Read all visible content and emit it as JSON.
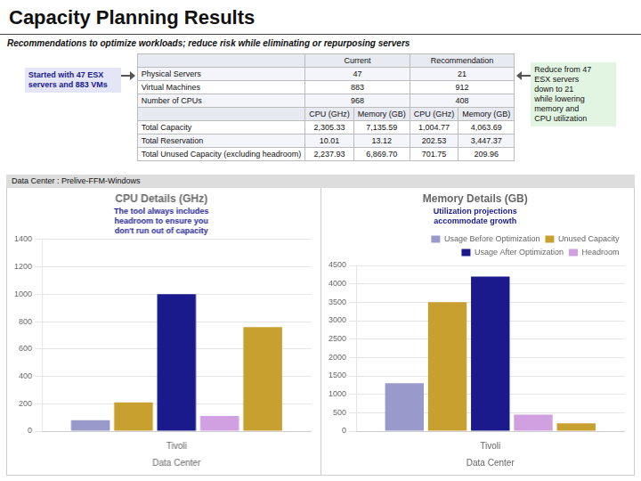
{
  "title": "Capacity Planning Results",
  "subtitle": "Recommendations to optimize workloads; reduce risk while eliminating or repurposing servers",
  "table": {
    "columns": [
      "Current",
      "Recommendation"
    ],
    "rows": [
      {
        "label": "Physical Servers",
        "values": [
          "47",
          "21"
        ]
      },
      {
        "label": "Virtual Machines",
        "values": [
          "883",
          "912"
        ]
      },
      {
        "label": "Number of CPUs",
        "values": [
          "968",
          "408"
        ]
      }
    ],
    "sub_headers": [
      "CPU (GHz)",
      "Memory (GB)",
      "CPU (GHz)",
      "Memory (GB)"
    ],
    "data_rows": [
      {
        "label": "Total Capacity",
        "values": [
          "2,305.33",
          "7,135.59",
          "1,004.77",
          "4,063.69"
        ]
      },
      {
        "label": "Total Reservation",
        "values": [
          "10.01",
          "13.12",
          "202.53",
          "3,447.37"
        ]
      },
      {
        "label": "Total Unused Capacity (excluding headroom)",
        "values": [
          "2,237.93",
          "6,869.70",
          "701.75",
          "209.96"
        ]
      }
    ]
  },
  "annotations": [
    "Started with 47 ESX\nservers and 883 VMs",
    "Reduce from 47\nESX servers\ndown to 21\nwhile lowering\nmemory and\nCPU utilization",
    "Data Center : Prelive-FFM-Windows"
  ],
  "chart_data": [
    {
      "type": "bar",
      "title": "CPU Details (GHz)",
      "xlabel": "Data Center",
      "categories": [
        "Tivoli"
      ],
      "series": [
        {
          "color": "#9999cc",
          "values": [
            80
          ]
        },
        {
          "color": "#c8a030",
          "values": [
            210
          ]
        },
        {
          "color": "#1a1a8c",
          "values": [
            1000
          ]
        },
        {
          "color": "#d0a0e0",
          "values": [
            110
          ]
        },
        {
          "color": "#c8a030",
          "values": [
            760
          ]
        }
      ],
      "ylim": [
        0,
        1400
      ],
      "yticks": [
        0,
        200,
        400,
        600,
        800,
        1000,
        1200,
        1400
      ],
      "grid": true,
      "annotations": [
        "The tool always includes\nheadroom to ensure you\ndon't run out of capacity"
      ]
    },
    {
      "type": "bar",
      "title": "Memory Details (GB)",
      "xlabel": "Data Center",
      "categories": [
        "Tivoli"
      ],
      "series": [
        {
          "name": "Usage Before Optimization",
          "color": "#9999cc",
          "values": [
            1300
          ]
        },
        {
          "name": "Unused Capacity",
          "color": "#c8a030",
          "values": [
            3500
          ]
        },
        {
          "name": "Usage After Optimization",
          "color": "#1a1a8c",
          "values": [
            4200
          ]
        },
        {
          "name": "Headroom",
          "color": "#d0a0e0",
          "values": [
            450
          ]
        },
        {
          "name": "Unused Capacity",
          "color": "#c8a030",
          "values": [
            210
          ]
        }
      ],
      "ylim": [
        0,
        4500
      ],
      "yticks": [
        0,
        500,
        1000,
        1500,
        2000,
        2500,
        3000,
        3500,
        4000,
        4500
      ],
      "grid": true,
      "legend": "upper right",
      "annotations": [
        "Utilization projections\naccommodate growth"
      ]
    }
  ]
}
